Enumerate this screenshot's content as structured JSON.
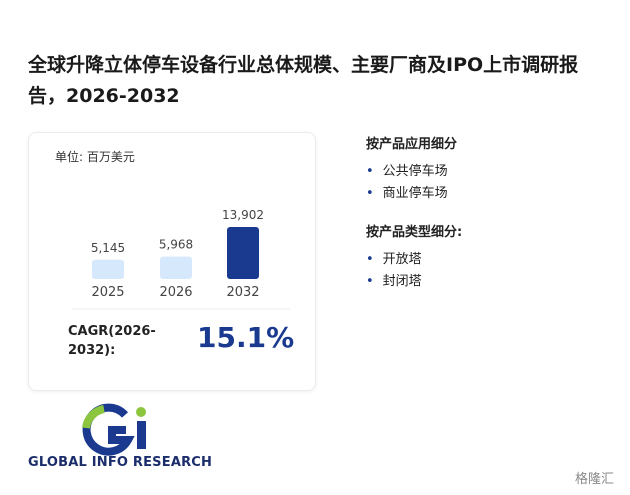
{
  "header": {
    "title": "全球升降立体停车设备行业总体规模、主要厂商及IPO上市调研报告，2026-2032"
  },
  "chart_data": {
    "type": "bar",
    "unit": "单位: 百万美元",
    "categories": [
      "2025",
      "2026",
      "2032"
    ],
    "values": [
      5145,
      5968,
      13902
    ],
    "value_labels": [
      "5,145",
      "5,968",
      "13,902"
    ],
    "colors": [
      "#d6e8fb",
      "#d6e8fb",
      "#1a3a8f"
    ]
  },
  "cagr": {
    "label": "CAGR(2026-2032):",
    "value": "15.1%"
  },
  "segments": [
    {
      "title": "按产品应用细分",
      "items": [
        "公共停车场",
        "商业停车场"
      ]
    },
    {
      "title": "按产品类型细分:",
      "items": [
        "开放塔",
        "封闭塔"
      ]
    }
  ],
  "brand": "GLOBAL INFO RESEARCH",
  "watermark": "格隆汇"
}
